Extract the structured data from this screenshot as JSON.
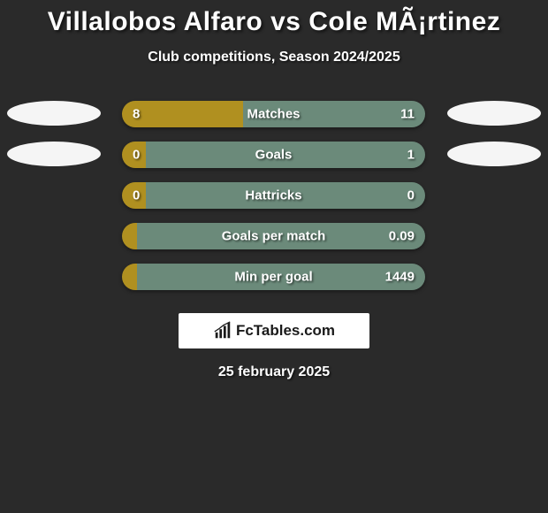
{
  "title": "Villalobos Alfaro vs Cole MÃ¡rtinez",
  "subtitle": "Club competitions, Season 2024/2025",
  "date": "25 february 2025",
  "watermark": {
    "text": "FcTables.com",
    "icon": "bar-chart-icon"
  },
  "colors": {
    "background": "#2a2a2a",
    "leftEllipse": "#f5f5f5",
    "rightEllipse": "#f5f5f5",
    "segLeft": "#b09020",
    "segRight": "#6b8a7a",
    "text": "#ffffff"
  },
  "layout": {
    "barWidthPx": 343,
    "barHeightPx": 30,
    "rowHeightPx": 46,
    "ellipseW": 106,
    "ellipseH": 28
  },
  "rows": [
    {
      "label": "Matches",
      "left": "8",
      "right": "11",
      "leftPct": 40,
      "rightPct": 60,
      "showEllipses": true
    },
    {
      "label": "Goals",
      "left": "0",
      "right": "1",
      "leftPct": 8,
      "rightPct": 92,
      "showEllipses": true
    },
    {
      "label": "Hattricks",
      "left": "0",
      "right": "0",
      "leftPct": 8,
      "rightPct": 92,
      "showEllipses": false
    },
    {
      "label": "Goals per match",
      "left": "",
      "right": "0.09",
      "leftPct": 5,
      "rightPct": 95,
      "showEllipses": false
    },
    {
      "label": "Min per goal",
      "left": "",
      "right": "1449",
      "leftPct": 5,
      "rightPct": 95,
      "showEllipses": false
    }
  ]
}
